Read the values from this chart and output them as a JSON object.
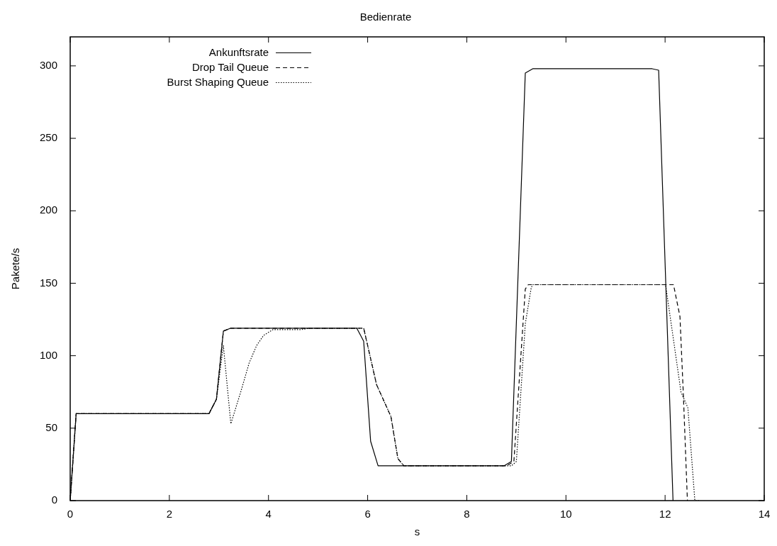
{
  "chart_data": {
    "type": "line",
    "title": "Bedienrate",
    "xlabel": "s",
    "ylabel": "Pakete/s",
    "xlim": [
      0,
      14
    ],
    "xticks": [
      0,
      2,
      4,
      6,
      8,
      10,
      12,
      14
    ],
    "ylim": [
      0,
      320
    ],
    "yticks": [
      0,
      50,
      100,
      150,
      200,
      250,
      300
    ],
    "grid": false,
    "legend": "top left",
    "marker": "none",
    "series": [
      {
        "name": "Ankunftsrate",
        "color": "#000000",
        "line_style": "solid",
        "x": [
          0,
          0.12,
          2.8,
          2.95,
          3.09,
          3.24,
          5.78,
          5.92,
          6.06,
          6.21,
          8.75,
          8.9,
          9.18,
          9.33,
          11.74,
          11.87,
          12.16
        ],
        "values": [
          0,
          60,
          60,
          70,
          117,
          119,
          119,
          110,
          41,
          24,
          24,
          27,
          295,
          298,
          298,
          297,
          0
        ]
      },
      {
        "name": "Drop Tail Queue",
        "color": "#000000",
        "line_style": "dashed",
        "x": [
          0,
          0.12,
          2.8,
          2.95,
          3.09,
          3.24,
          5.78,
          5.92,
          6.18,
          6.47,
          6.61,
          6.73,
          8.8,
          8.95,
          9.18,
          9.24,
          12.17,
          12.3,
          12.37,
          12.45
        ],
        "values": [
          0,
          60,
          60,
          70,
          117,
          119,
          119,
          119,
          80,
          58,
          29,
          24,
          24,
          27,
          146,
          149,
          149,
          127,
          72,
          0
        ]
      },
      {
        "name": "Burst Shaping Queue",
        "color": "#000000",
        "line_style": "dotted",
        "x": [
          0,
          0.12,
          2.8,
          2.95,
          3.09,
          3.24,
          3.44,
          3.61,
          3.76,
          3.9,
          4.09,
          4.67,
          4.82,
          5.92,
          6.18,
          6.47,
          6.61,
          6.73,
          8.9,
          9.0,
          9.18,
          9.3,
          9.33,
          12.01,
          12.32,
          12.46,
          12.6,
          12.7
        ],
        "values": [
          0,
          60,
          60,
          70,
          107,
          53,
          75,
          95,
          107,
          114,
          118,
          118,
          119,
          119,
          80,
          58,
          29,
          24,
          24,
          27,
          122,
          147,
          149,
          149,
          75,
          64,
          0,
          0
        ]
      }
    ]
  }
}
